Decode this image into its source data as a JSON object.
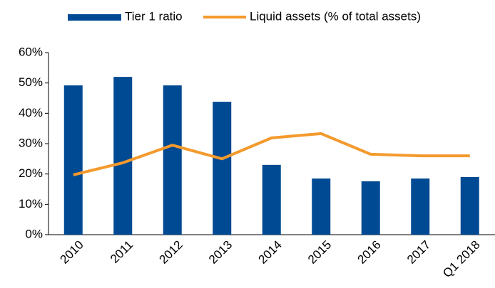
{
  "chart_data": {
    "type": "bar",
    "categories": [
      "2010",
      "2011",
      "2012",
      "2013",
      "2014",
      "2015",
      "2016",
      "2017",
      "Q1 2018"
    ],
    "series": [
      {
        "name": "Tier 1 ratio",
        "type": "bar",
        "color": "#004a93",
        "values": [
          49.2,
          52,
          49.2,
          43.8,
          23,
          18.5,
          17.6,
          18.5,
          19
        ]
      },
      {
        "name": "Liquid assets (% of total assets)",
        "type": "line",
        "color": "#f39a2d",
        "values": [
          19.7,
          23.7,
          29.5,
          25,
          31.9,
          33.3,
          26.5,
          26,
          26
        ]
      }
    ],
    "ylim": [
      0,
      60
    ],
    "yticks": [
      {
        "value": 0,
        "label": "0%"
      },
      {
        "value": 10,
        "label": "10%"
      },
      {
        "value": 20,
        "label": "20%"
      },
      {
        "value": 30,
        "label": "30%"
      },
      {
        "value": 40,
        "label": "40%"
      },
      {
        "value": 50,
        "label": "50%"
      },
      {
        "value": 60,
        "label": "60%"
      }
    ],
    "grid": false,
    "legend": "top"
  }
}
